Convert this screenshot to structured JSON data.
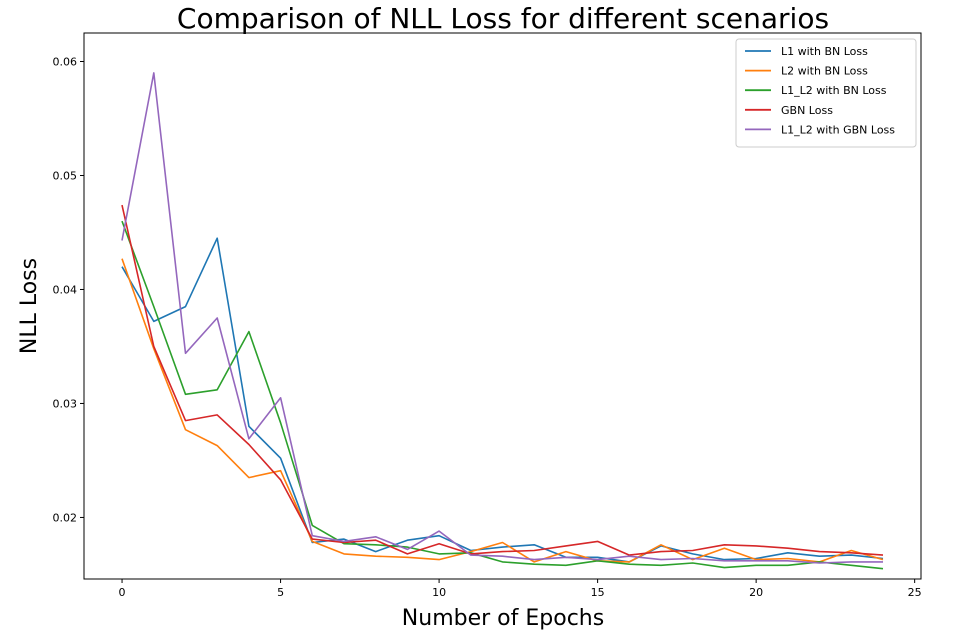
{
  "chart_data": {
    "type": "line",
    "title": "Comparison of NLL Loss for different scenarios",
    "xlabel": "Number of Epochs",
    "ylabel": "NLL Loss",
    "xlim": [
      -1.2,
      25.2
    ],
    "ylim": [
      0.0146,
      0.0625
    ],
    "xticks": [
      0,
      5,
      10,
      15,
      20,
      25
    ],
    "yticks": [
      0.02,
      0.03,
      0.04,
      0.05,
      0.06
    ],
    "ytick_labels": [
      "0.02",
      "0.03",
      "0.04",
      "0.05",
      "0.06"
    ],
    "legend_position": "top-right",
    "grid": false,
    "x": [
      0,
      1,
      2,
      3,
      4,
      5,
      6,
      7,
      8,
      9,
      10,
      11,
      12,
      13,
      14,
      15,
      16,
      17,
      18,
      19,
      20,
      21,
      22,
      23,
      24
    ],
    "series": [
      {
        "name": "L1 with BN Loss",
        "color": "#1f77b4",
        "values": [
          0.042,
          0.0372,
          0.0385,
          0.0445,
          0.028,
          0.0252,
          0.0178,
          0.0181,
          0.017,
          0.018,
          0.0184,
          0.0171,
          0.0174,
          0.0176,
          0.0165,
          0.0165,
          0.0161,
          0.0175,
          0.0168,
          0.0163,
          0.0164,
          0.0169,
          0.0166,
          0.0167,
          0.0164
        ]
      },
      {
        "name": "L2 with BN Loss",
        "color": "#ff7f0e",
        "values": [
          0.0427,
          0.0348,
          0.0277,
          0.0263,
          0.0235,
          0.0241,
          0.0179,
          0.0168,
          0.0166,
          0.0165,
          0.0163,
          0.017,
          0.0178,
          0.0161,
          0.017,
          0.0162,
          0.0161,
          0.0176,
          0.0163,
          0.0173,
          0.0163,
          0.0164,
          0.0161,
          0.0171,
          0.0163
        ]
      },
      {
        "name": "L1_L2 with BN Loss",
        "color": "#2ca02c",
        "values": [
          0.046,
          0.0385,
          0.0308,
          0.0312,
          0.0363,
          0.0283,
          0.0193,
          0.0177,
          0.0176,
          0.0174,
          0.0168,
          0.0169,
          0.0161,
          0.0159,
          0.0158,
          0.0162,
          0.0159,
          0.0158,
          0.016,
          0.0156,
          0.0158,
          0.0158,
          0.0161,
          0.0158,
          0.0155
        ]
      },
      {
        "name": "GBN Loss",
        "color": "#d62728",
        "values": [
          0.0474,
          0.035,
          0.0285,
          0.029,
          0.0264,
          0.0233,
          0.0181,
          0.0178,
          0.018,
          0.0168,
          0.0177,
          0.0168,
          0.017,
          0.0171,
          0.0175,
          0.0179,
          0.0167,
          0.017,
          0.0171,
          0.0176,
          0.0175,
          0.0173,
          0.017,
          0.0169,
          0.0167
        ]
      },
      {
        "name": "L1_L2 with GBN Loss",
        "color": "#9467bd",
        "values": [
          0.0443,
          0.059,
          0.0344,
          0.0375,
          0.0269,
          0.0305,
          0.0184,
          0.0179,
          0.0183,
          0.0172,
          0.0188,
          0.0167,
          0.0166,
          0.0163,
          0.0165,
          0.0163,
          0.0166,
          0.0163,
          0.0164,
          0.0162,
          0.0162,
          0.0162,
          0.016,
          0.0161,
          0.0161
        ]
      }
    ]
  }
}
